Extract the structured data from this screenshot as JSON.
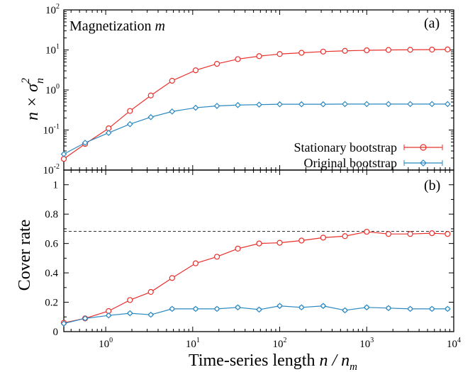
{
  "chart_data": [
    {
      "type": "line",
      "panel_label": "(a)",
      "annotation": "Magnetization",
      "annotation_var": "m",
      "ylabel_parts": [
        "n × σ",
        "2",
        "n"
      ],
      "xscale": "log",
      "yscale": "log",
      "xlim": [
        0.33,
        10000
      ],
      "ylim": [
        0.01,
        100
      ],
      "ytick_labels": [
        [
          "10",
          "-2"
        ],
        [
          "10",
          "-1"
        ],
        [
          "10",
          "0"
        ],
        [
          "10",
          "1"
        ],
        [
          "10",
          "2"
        ]
      ],
      "legend_position": "bottom-right",
      "x": [
        0.33,
        0.58,
        1.08,
        1.9,
        3.3,
        5.8,
        10.8,
        19,
        33,
        58,
        100,
        178,
        316,
        562,
        1000,
        1778,
        3162,
        5623,
        8500
      ],
      "series": [
        {
          "name": "Stationary bootstrap",
          "color": "#e8302c",
          "marker": "circle",
          "values": [
            0.019,
            0.045,
            0.11,
            0.3,
            0.73,
            1.7,
            3.1,
            4.5,
            5.9,
            7.0,
            7.9,
            8.5,
            9.1,
            9.5,
            9.8,
            10.0,
            10.1,
            10.2,
            10.3
          ]
        },
        {
          "name": "Original bootstrap",
          "color": "#2a88c0",
          "marker": "diamond",
          "values": [
            0.025,
            0.048,
            0.085,
            0.14,
            0.21,
            0.29,
            0.36,
            0.4,
            0.42,
            0.43,
            0.44,
            0.44,
            0.44,
            0.445,
            0.445,
            0.445,
            0.445,
            0.445,
            0.445
          ]
        }
      ]
    },
    {
      "type": "line",
      "panel_label": "(b)",
      "ylabel": "Cover rate",
      "xlabel_text": "Time-series length",
      "xlabel_var": "n / n",
      "xlabel_sub": "m",
      "xscale": "log",
      "xlim": [
        0.33,
        10000
      ],
      "ylim": [
        0,
        1.1
      ],
      "yticks": [
        "0",
        "0.2",
        "0.4",
        "0.6",
        "0.8",
        "1"
      ],
      "xtick_labels": [
        [
          "10",
          "0"
        ],
        [
          "10",
          "1"
        ],
        [
          "10",
          "2"
        ],
        [
          "10",
          "3"
        ],
        [
          "10",
          "4"
        ]
      ],
      "reference_line": 0.6827,
      "x": [
        0.33,
        0.58,
        1.08,
        1.9,
        3.3,
        5.8,
        10.8,
        19,
        33,
        58,
        100,
        178,
        316,
        562,
        1000,
        1778,
        3162,
        5623,
        8500
      ],
      "series": [
        {
          "name": "Stationary bootstrap",
          "color": "#e8302c",
          "marker": "circle",
          "values": [
            0.06,
            0.09,
            0.14,
            0.215,
            0.27,
            0.365,
            0.465,
            0.51,
            0.565,
            0.6,
            0.605,
            0.62,
            0.64,
            0.65,
            0.68,
            0.665,
            0.665,
            0.67,
            0.665
          ],
          "errors": [
            0.006,
            0.006,
            0.008,
            0.009,
            0.01,
            0.011,
            0.012,
            0.012,
            0.012,
            0.012,
            0.012,
            0.012,
            0.012,
            0.012,
            0.012,
            0.012,
            0.012,
            0.012,
            0.012
          ]
        },
        {
          "name": "Original bootstrap",
          "color": "#2a88c0",
          "marker": "diamond",
          "values": [
            0.055,
            0.09,
            0.11,
            0.125,
            0.115,
            0.155,
            0.155,
            0.155,
            0.165,
            0.15,
            0.175,
            0.165,
            0.175,
            0.145,
            0.165,
            0.16,
            0.155,
            0.155,
            0.155
          ],
          "errors": [
            0.006,
            0.006,
            0.007,
            0.008,
            0.008,
            0.009,
            0.009,
            0.009,
            0.009,
            0.009,
            0.009,
            0.009,
            0.009,
            0.009,
            0.009,
            0.009,
            0.009,
            0.009,
            0.009
          ]
        }
      ]
    }
  ]
}
